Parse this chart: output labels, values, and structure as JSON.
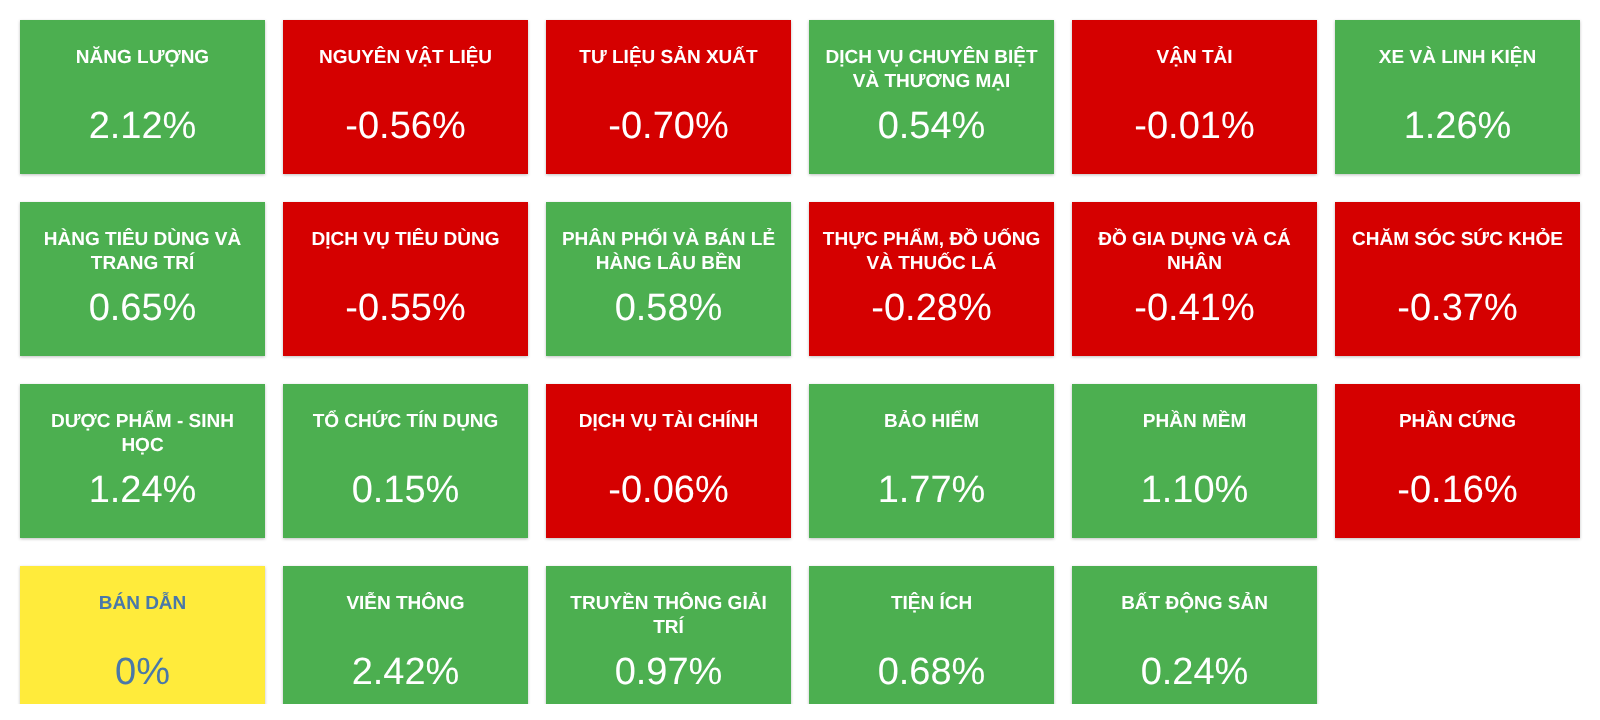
{
  "chart_data": {
    "type": "other",
    "categories": [
      "NĂNG LƯỢNG",
      "NGUYÊN VẬT LIỆU",
      "TƯ LIỆU SẢN XUẤT",
      "DỊCH VỤ CHUYÊN BIỆT VÀ THƯƠNG MẠI",
      "VẬN TẢI",
      "XE VÀ LINH KIỆN",
      "HÀNG TIÊU DÙNG VÀ TRANG TRÍ",
      "DỊCH VỤ TIÊU DÙNG",
      "PHÂN PHỐI VÀ BÁN LẺ HÀNG LÂU BỀN",
      "THỰC PHẨM, ĐỒ UỐNG VÀ THUỐC LÁ",
      "ĐỒ GIA DỤNG VÀ CÁ NHÂN",
      "CHĂM SÓC SỨC KHỎE",
      "DƯỢC PHẨM - SINH HỌC",
      "TỔ CHỨC TÍN DỤNG",
      "DỊCH VỤ TÀI CHÍNH",
      "BẢO HIỂM",
      "PHẦN MỀM",
      "PHẦN CỨNG",
      "BÁN DẪN",
      "VIỄN THÔNG",
      "TRUYỀN THÔNG GIẢI TRÍ",
      "TIỆN ÍCH",
      "BẤT ĐỘNG SẢN"
    ],
    "values": [
      2.12,
      -0.56,
      -0.7,
      0.54,
      -0.01,
      1.26,
      0.65,
      -0.55,
      0.58,
      -0.28,
      -0.41,
      -0.37,
      1.24,
      0.15,
      -0.06,
      1.77,
      1.1,
      -0.16,
      0,
      2.42,
      0.97,
      0.68,
      0.24
    ],
    "value_labels": [
      "2.12%",
      "-0.56%",
      "-0.70%",
      "0.54%",
      "-0.01%",
      "1.26%",
      "0.65%",
      "-0.55%",
      "0.58%",
      "-0.28%",
      "-0.41%",
      "-0.37%",
      "1.24%",
      "0.15%",
      "-0.06%",
      "1.77%",
      "1.10%",
      "-0.16%",
      "0%",
      "2.42%",
      "0.97%",
      "0.68%",
      "0.24%"
    ],
    "colors": [
      "#4caf50",
      "#d50000",
      "#d50000",
      "#4caf50",
      "#d50000",
      "#4caf50",
      "#4caf50",
      "#d50000",
      "#4caf50",
      "#d50000",
      "#d50000",
      "#d50000",
      "#4caf50",
      "#4caf50",
      "#d50000",
      "#4caf50",
      "#4caf50",
      "#d50000",
      "#ffeb3b",
      "#4caf50",
      "#4caf50",
      "#4caf50",
      "#4caf50"
    ]
  }
}
